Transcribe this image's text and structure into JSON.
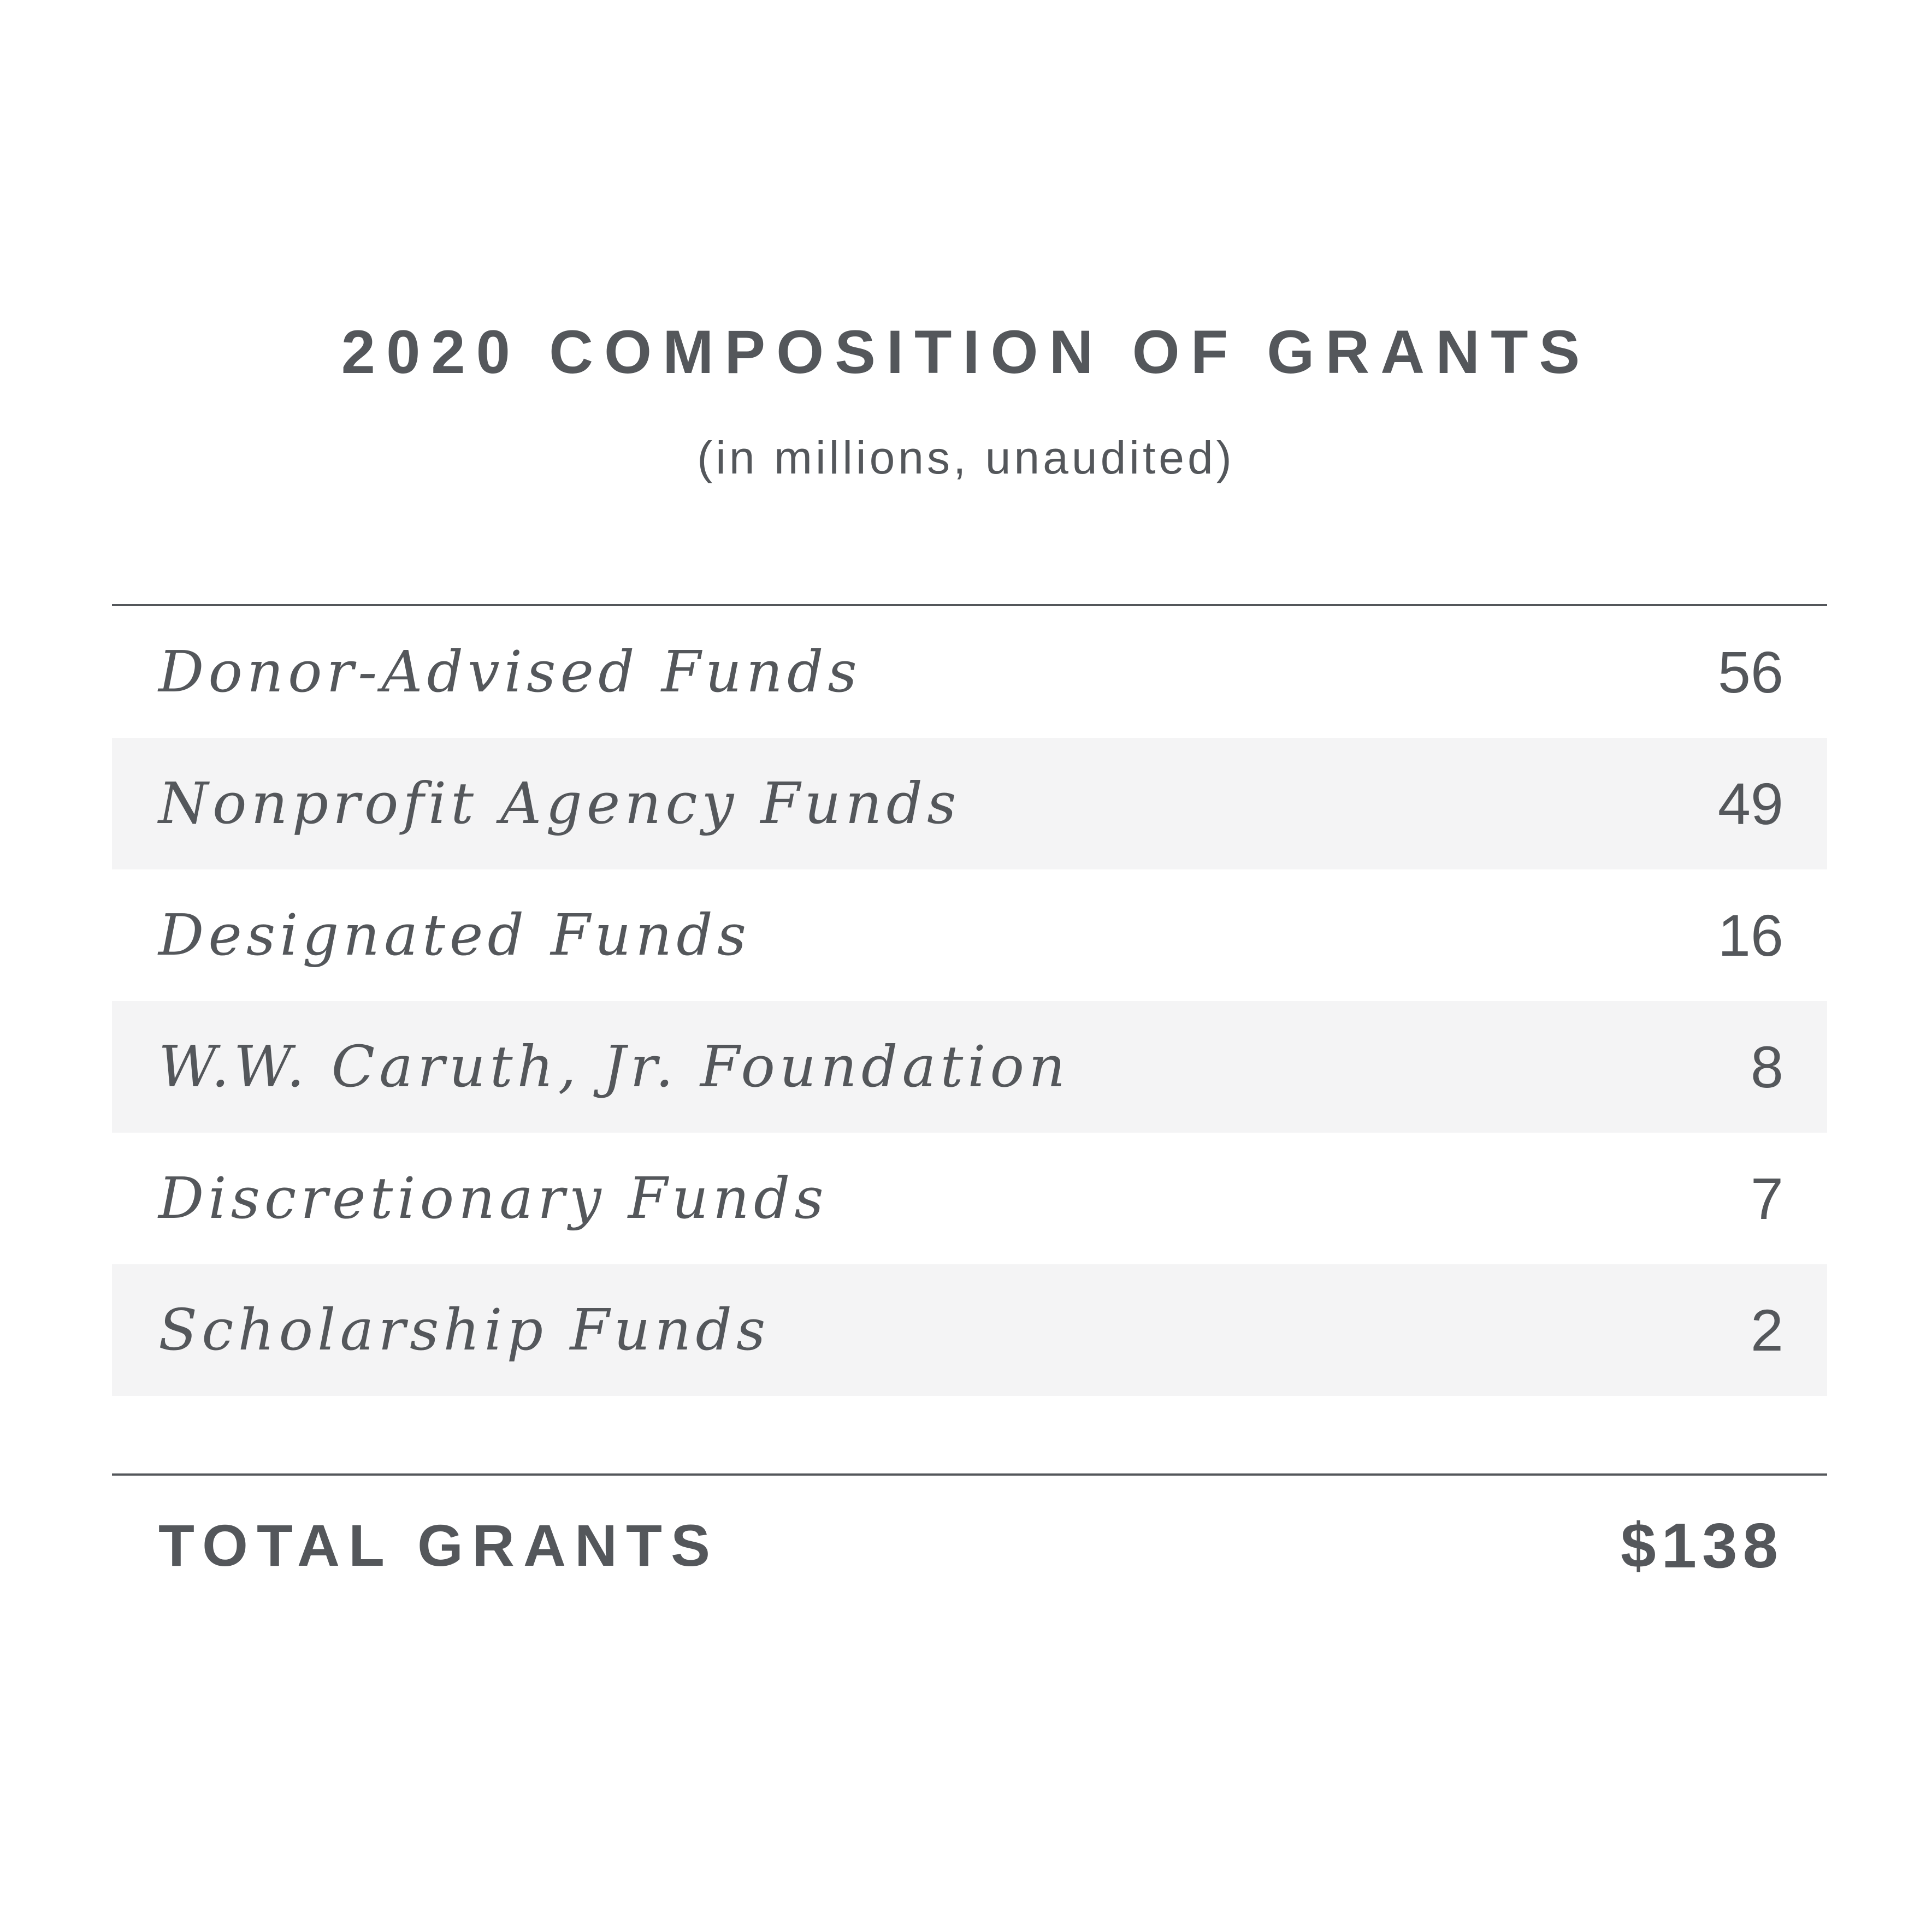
{
  "chart_data": {
    "type": "table",
    "title": "2020 COMPOSITION OF GRANTS",
    "subtitle": "(in millions, unaudited)",
    "rows": [
      {
        "label": "Donor-Advised Funds",
        "value": "56"
      },
      {
        "label": "Nonprofit Agency Funds",
        "value": "49"
      },
      {
        "label": "Designated Funds",
        "value": "16"
      },
      {
        "label": "W.W. Caruth, Jr. Foundation",
        "value": "8"
      },
      {
        "label": "Discretionary Funds",
        "value": "7"
      },
      {
        "label": "Scholarship Funds",
        "value": "2"
      }
    ],
    "total": {
      "label": "TOTAL GRANTS",
      "value": "$138"
    }
  },
  "colors": {
    "text": "#54575b",
    "shaded_row": "#f4f4f5",
    "background": "#ffffff"
  }
}
